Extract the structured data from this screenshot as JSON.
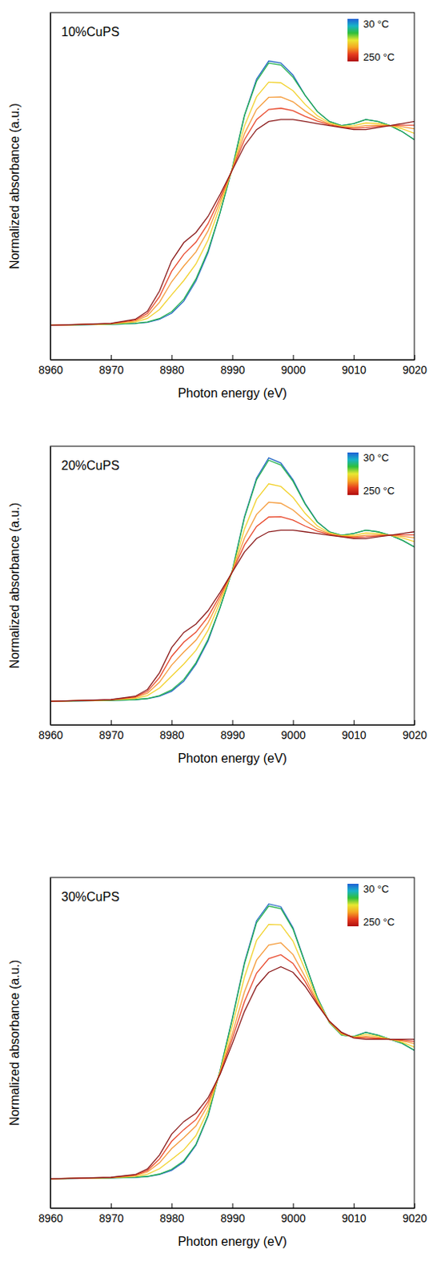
{
  "chart_data": [
    {
      "type": "line",
      "title": "10%CuPS",
      "x_label": "Photon energy (eV)",
      "y_label": "Normalized absorbance (a.u.)",
      "tick_labels": "x",
      "x": [
        8960,
        8970,
        8974,
        8976,
        8978,
        8980,
        8982,
        8984,
        8986,
        8988,
        8990,
        8992,
        8994,
        8996,
        8998,
        9000,
        9002,
        9004,
        9006,
        9008,
        9010,
        9012,
        9014,
        9016,
        9018,
        9020
      ],
      "xlim": [
        8960,
        9020
      ],
      "xticks": [
        8960,
        8970,
        8980,
        8990,
        9000,
        9010,
        9020
      ],
      "ylim": [
        -0.17,
        1.55
      ],
      "colorbar": {
        "lim": [
          30,
          250
        ],
        "ticks": [
          {
            "value": 30,
            "label": "30 °C"
          },
          {
            "value": 250,
            "label": "250 °C"
          }
        ],
        "colors": [
          "#1f5fd6",
          "#18b4c8",
          "#2fbf3a",
          "#e8e832",
          "#f5a623",
          "#e63b1e",
          "#b01010"
        ]
      },
      "series": [
        {
          "color": "#2166c4",
          "values": [
            0,
            0.005,
            0.01,
            0.015,
            0.03,
            0.06,
            0.12,
            0.22,
            0.36,
            0.56,
            0.78,
            1.04,
            1.22,
            1.31,
            1.3,
            1.24,
            1.14,
            1.06,
            1.01,
            0.99,
            1.0,
            1.02,
            1.01,
            0.99,
            0.96,
            0.92
          ]
        },
        {
          "color": "#22b14c",
          "values": [
            0,
            0.005,
            0.01,
            0.017,
            0.034,
            0.068,
            0.13,
            0.23,
            0.37,
            0.56,
            0.78,
            1.04,
            1.21,
            1.3,
            1.29,
            1.23,
            1.14,
            1.06,
            1.01,
            0.99,
            1.0,
            1.02,
            1.01,
            0.99,
            0.96,
            0.92
          ]
        },
        {
          "color": "#f2d22e",
          "values": [
            0,
            0.007,
            0.017,
            0.034,
            0.079,
            0.151,
            0.222,
            0.304,
            0.423,
            0.592,
            0.777,
            0.988,
            1.133,
            1.205,
            1.202,
            1.163,
            1.095,
            1.039,
            1.003,
            0.987,
            0.99,
            1.003,
            1.0,
            0.99,
            0.974,
            0.952
          ]
        },
        {
          "color": "#f59b3a",
          "values": [
            0,
            0.008,
            0.022,
            0.048,
            0.114,
            0.216,
            0.294,
            0.364,
            0.468,
            0.614,
            0.774,
            0.95,
            1.07,
            1.13,
            1.132,
            1.108,
            1.062,
            1.024,
            0.998,
            0.984,
            0.982,
            0.99,
            0.992,
            0.99,
            0.984,
            0.974
          ]
        },
        {
          "color": "#e8472a",
          "values": [
            0,
            0.009,
            0.026,
            0.059,
            0.142,
            0.268,
            0.352,
            0.412,
            0.504,
            0.632,
            0.772,
            0.92,
            1.02,
            1.07,
            1.076,
            1.064,
            1.036,
            1.012,
            0.994,
            0.982,
            0.976,
            0.98,
            0.986,
            0.99,
            0.992,
            0.992
          ]
        },
        {
          "color": "#8b1a1a",
          "values": [
            0,
            0.01,
            0.03,
            0.07,
            0.17,
            0.32,
            0.41,
            0.46,
            0.54,
            0.65,
            0.77,
            0.89,
            0.97,
            1.01,
            1.02,
            1.02,
            1.01,
            1.0,
            0.99,
            0.98,
            0.97,
            0.97,
            0.98,
            0.99,
            1.0,
            1.01
          ]
        }
      ]
    },
    {
      "type": "line",
      "title": "20%CuPS",
      "x_label": "Photon energy (eV)",
      "y_label": "Normalized absorbance (a.u.)",
      "tick_labels": "x",
      "x": [
        8960,
        8970,
        8974,
        8976,
        8978,
        8980,
        8982,
        8984,
        8986,
        8988,
        8990,
        8992,
        8994,
        8996,
        8998,
        9000,
        9002,
        9004,
        9006,
        9008,
        9010,
        9012,
        9014,
        9016,
        9018,
        9020
      ],
      "xlim": [
        8960,
        9020
      ],
      "xticks": [
        8960,
        8970,
        8980,
        8990,
        9000,
        9010,
        9020
      ],
      "ylim": [
        -0.14,
        1.52
      ],
      "colorbar": {
        "lim": [
          30,
          250
        ],
        "ticks": [
          {
            "value": 30,
            "label": "30 °C"
          },
          {
            "value": 250,
            "label": "250 °C"
          }
        ],
        "colors": [
          "#1f5fd6",
          "#18b4c8",
          "#2fbf3a",
          "#e8e832",
          "#f5a623",
          "#e63b1e",
          "#b01010"
        ]
      },
      "series": [
        {
          "color": "#2166c4",
          "values": [
            0,
            0.005,
            0.01,
            0.015,
            0.03,
            0.06,
            0.12,
            0.22,
            0.36,
            0.56,
            0.78,
            1.1,
            1.33,
            1.45,
            1.42,
            1.32,
            1.18,
            1.07,
            1.01,
            0.99,
            1.0,
            1.02,
            1.01,
            0.99,
            0.96,
            0.92
          ]
        },
        {
          "color": "#22b14c",
          "values": [
            0,
            0.005,
            0.01,
            0.017,
            0.034,
            0.068,
            0.13,
            0.23,
            0.37,
            0.56,
            0.78,
            1.094,
            1.32,
            1.437,
            1.408,
            1.311,
            1.175,
            1.068,
            1.01,
            0.99,
            1.0,
            1.02,
            1.01,
            0.99,
            0.96,
            0.92
          ]
        },
        {
          "color": "#f2d22e",
          "values": [
            0,
            0.007,
            0.017,
            0.034,
            0.079,
            0.151,
            0.222,
            0.304,
            0.423,
            0.592,
            0.777,
            1.027,
            1.204,
            1.296,
            1.28,
            1.215,
            1.12,
            1.045,
            1.003,
            0.987,
            0.99,
            1.003,
            1.0,
            0.99,
            0.974,
            0.952
          ]
        },
        {
          "color": "#f59b3a",
          "values": [
            0,
            0.008,
            0.022,
            0.048,
            0.114,
            0.216,
            0.294,
            0.364,
            0.468,
            0.614,
            0.774,
            0.974,
            1.114,
            1.186,
            1.18,
            1.14,
            1.078,
            1.028,
            0.998,
            0.984,
            0.982,
            0.99,
            0.992,
            0.99,
            0.984,
            0.974
          ]
        },
        {
          "color": "#e8472a",
          "values": [
            0,
            0.009,
            0.026,
            0.059,
            0.142,
            0.268,
            0.352,
            0.412,
            0.504,
            0.632,
            0.772,
            0.932,
            1.042,
            1.098,
            1.1,
            1.08,
            1.044,
            1.014,
            0.994,
            0.982,
            0.976,
            0.98,
            0.986,
            0.99,
            0.992,
            0.992
          ]
        },
        {
          "color": "#8b1a1a",
          "values": [
            0,
            0.01,
            0.03,
            0.07,
            0.17,
            0.32,
            0.41,
            0.46,
            0.54,
            0.65,
            0.77,
            0.89,
            0.97,
            1.01,
            1.02,
            1.02,
            1.01,
            1.0,
            0.99,
            0.98,
            0.97,
            0.97,
            0.98,
            0.99,
            1.0,
            1.01
          ]
        }
      ]
    },
    {
      "type": "line",
      "title": "30%CuPS",
      "x_label": "Photon energy (eV)",
      "y_label": "Normalized absorbance (a.u.)",
      "tick_labels": "x",
      "x": [
        8960,
        8970,
        8974,
        8976,
        8978,
        8980,
        8982,
        8984,
        8986,
        8988,
        8990,
        8992,
        8994,
        8996,
        8998,
        9000,
        9002,
        9004,
        9006,
        9008,
        9010,
        9012,
        9014,
        9016,
        9018,
        9020
      ],
      "xlim": [
        8960,
        9020
      ],
      "xticks": [
        8960,
        8970,
        8980,
        8990,
        9000,
        9010,
        9020
      ],
      "ylim": [
        -0.21,
        2.16
      ],
      "colorbar": {
        "lim": [
          30,
          250
        ],
        "ticks": [
          {
            "value": 30,
            "label": "30 °C"
          },
          {
            "value": 250,
            "label": "250 °C"
          }
        ],
        "colors": [
          "#1f5fd6",
          "#18b4c8",
          "#2fbf3a",
          "#e8e832",
          "#f5a623",
          "#e63b1e",
          "#b01010"
        ]
      },
      "series": [
        {
          "color": "#2166c4",
          "values": [
            0,
            0.005,
            0.01,
            0.015,
            0.03,
            0.06,
            0.12,
            0.24,
            0.45,
            0.78,
            1.15,
            1.55,
            1.85,
            1.97,
            1.95,
            1.8,
            1.55,
            1.3,
            1.12,
            1.03,
            1.02,
            1.05,
            1.03,
            1.0,
            0.97,
            0.92
          ]
        },
        {
          "color": "#22b14c",
          "values": [
            0,
            0.005,
            0.011,
            0.017,
            0.034,
            0.068,
            0.129,
            0.247,
            0.454,
            0.779,
            1.145,
            1.54,
            1.836,
            1.955,
            1.937,
            1.79,
            1.545,
            1.299,
            1.12,
            1.031,
            1.02,
            1.049,
            1.029,
            1.0,
            0.971,
            0.922
          ]
        },
        {
          "color": "#f2d22e",
          "values": [
            0,
            0.007,
            0.016,
            0.032,
            0.072,
            0.138,
            0.207,
            0.309,
            0.489,
            0.771,
            1.096,
            1.445,
            1.709,
            1.823,
            1.821,
            1.704,
            1.499,
            1.285,
            1.123,
            1.036,
            1.017,
            1.035,
            1.021,
            1.0,
            0.979,
            0.944
          ]
        },
        {
          "color": "#f59b3a",
          "values": [
            0,
            0.008,
            0.022,
            0.048,
            0.114,
            0.216,
            0.294,
            0.378,
            0.528,
            0.762,
            1.042,
            1.34,
            1.568,
            1.676,
            1.692,
            1.608,
            1.448,
            1.27,
            1.126,
            1.042,
            1.014,
            1.02,
            1.012,
            1.0,
            0.988,
            0.968
          ]
        },
        {
          "color": "#e8472a",
          "values": [
            0,
            0.009,
            0.026,
            0.059,
            0.142,
            0.268,
            0.352,
            0.424,
            0.554,
            0.756,
            1.006,
            1.27,
            1.474,
            1.578,
            1.606,
            1.544,
            1.414,
            1.26,
            1.128,
            1.046,
            1.012,
            1.01,
            1.006,
            1.0,
            0.994,
            0.984
          ]
        },
        {
          "color": "#8b1a1a",
          "values": [
            0,
            0.01,
            0.03,
            0.07,
            0.17,
            0.32,
            0.41,
            0.47,
            0.58,
            0.75,
            0.97,
            1.2,
            1.38,
            1.48,
            1.52,
            1.48,
            1.38,
            1.25,
            1.13,
            1.05,
            1.01,
            1.0,
            1.0,
            1.0,
            1.0,
            1.0
          ]
        }
      ]
    }
  ]
}
